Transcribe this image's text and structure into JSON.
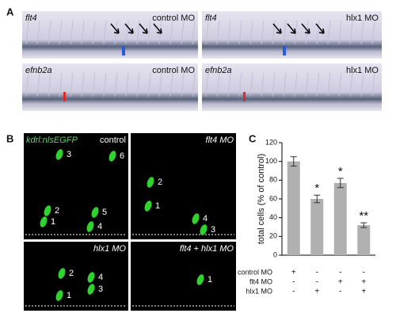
{
  "panel_a": {
    "letter": "A",
    "images": [
      {
        "gene": "flt4",
        "condition": "control MO"
      },
      {
        "gene": "flt4",
        "condition": "hlx1 MO"
      },
      {
        "gene": "efnb2a",
        "condition": "control MO"
      },
      {
        "gene": "efnb2a",
        "condition": "hlx1 MO"
      }
    ]
  },
  "panel_b": {
    "letter": "B",
    "reporter": "kdrl:nlsEGFP",
    "images": [
      {
        "condition": "control",
        "cells": [
          3,
          6,
          2,
          1,
          5,
          4
        ]
      },
      {
        "condition": "flt4 MO",
        "cells": [
          2,
          1,
          4,
          3
        ]
      },
      {
        "condition": "hlx1 MO",
        "cells": [
          2,
          4,
          3,
          1
        ]
      },
      {
        "condition": "flt4 + hlx1 MO",
        "cells": [
          1
        ]
      }
    ]
  },
  "panel_c": {
    "letter": "C"
  },
  "chart_data": {
    "type": "bar",
    "y_label": "total cells (% of control)",
    "categories": [
      null,
      null,
      null,
      null
    ],
    "values": [
      100,
      60,
      77,
      32
    ],
    "errors": [
      5,
      4,
      5,
      2.5
    ],
    "significance": [
      null,
      "*",
      "*",
      "**"
    ],
    "color": "#b0b0b0",
    "ylim": [
      0,
      120
    ],
    "yticks": [
      0,
      20,
      40,
      60,
      80,
      100,
      120
    ],
    "conditions": [
      {
        "name": "control MO",
        "marks": [
          "+",
          "-",
          "-",
          "-"
        ]
      },
      {
        "name": "flt4 MO",
        "marks": [
          "-",
          "-",
          "+",
          "+"
        ]
      },
      {
        "name": "hlx1 MO",
        "marks": [
          "-",
          "+",
          "-",
          "+"
        ]
      }
    ]
  }
}
